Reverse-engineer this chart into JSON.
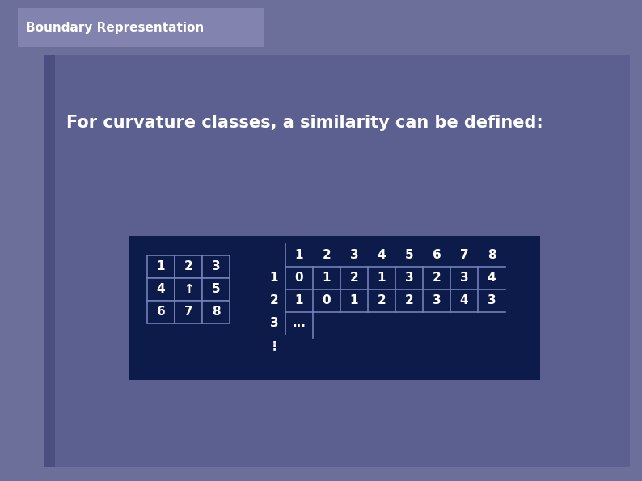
{
  "title_text": "Boundary Representation",
  "title_bg": "#8284af",
  "slide_bg": "#6b6f9a",
  "content_bg": "#5c6090",
  "content_left_bar": "#4a4e80",
  "table_bg": "#0d1b4b",
  "table_border": "#7080b8",
  "text_color": "#ffffff",
  "main_text": "For curvature classes, a similarity can be defined:",
  "small_grid_cells": [
    [
      "1",
      "2",
      "3"
    ],
    [
      "4",
      "↑",
      "5"
    ],
    [
      "6",
      "7",
      "8"
    ]
  ],
  "col_headers": [
    "1",
    "2",
    "3",
    "4",
    "5",
    "6",
    "7",
    "8"
  ],
  "matrix_row1": [
    "0",
    "1",
    "2",
    "1",
    "3",
    "2",
    "3",
    "4"
  ],
  "matrix_row2": [
    "1",
    "0",
    "1",
    "2",
    "2",
    "3",
    "4",
    "3"
  ]
}
